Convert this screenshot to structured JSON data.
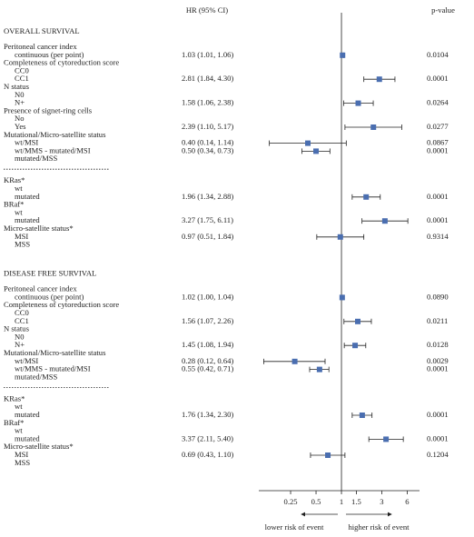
{
  "chart_data": {
    "type": "forest",
    "hr_header": "HR (95% CI)",
    "p_header": "p-value",
    "log_scale": true,
    "ref_line": 1,
    "xlim": [
      0.105,
      8.4
    ],
    "xticks": [
      0.25,
      0.5,
      1,
      1.5,
      3,
      6
    ],
    "marker_color": "#4a6eb0",
    "lower_label": "lower risk of event",
    "higher_label": "higher risk of event",
    "sections": [
      {
        "title": "OVERALL SURVIVAL",
        "blocks": [
          {
            "groups": [
              {
                "label": "Peritoneal cancer index",
                "rows": [
                  {
                    "label": "continuous (per point)",
                    "hr": 1.03,
                    "lo": 1.01,
                    "hi": 1.06,
                    "hr_label": "1.03 (1.01, 1.06)",
                    "p": "0.0104"
                  }
                ]
              },
              {
                "label": "Completeness of cytoreduction score",
                "rows": [
                  {
                    "label": "CC0"
                  },
                  {
                    "label": "CC1",
                    "hr": 2.81,
                    "lo": 1.84,
                    "hi": 4.3,
                    "hr_label": "2.81 (1.84, 4.30)",
                    "p": "0.0001"
                  }
                ]
              },
              {
                "label": "N status",
                "rows": [
                  {
                    "label": "N0"
                  },
                  {
                    "label": "N+",
                    "hr": 1.58,
                    "lo": 1.06,
                    "hi": 2.38,
                    "hr_label": "1.58 (1.06, 2.38)",
                    "p": "0.0264"
                  }
                ]
              },
              {
                "label": "Presence of signet-ring cells",
                "rows": [
                  {
                    "label": "No"
                  },
                  {
                    "label": "Yes",
                    "hr": 2.39,
                    "lo": 1.1,
                    "hi": 5.17,
                    "hr_label": "2.39 (1.10, 5.17)",
                    "p": "0.0277"
                  }
                ]
              },
              {
                "label": "Mutational/Micro-satellite status",
                "rows": [
                  {
                    "label": "wt/MSI",
                    "hr": 0.4,
                    "lo": 0.14,
                    "hi": 1.14,
                    "hr_label": "0.40 (0.14, 1.14)",
                    "p": "0.0867"
                  },
                  {
                    "label": "wt/MMS - mutated/MSI",
                    "hr": 0.5,
                    "lo": 0.34,
                    "hi": 0.73,
                    "hr_label": "0.50 (0.34, 0.73)",
                    "p": "0.0001"
                  },
                  {
                    "label": "mutated/MSS"
                  }
                ]
              }
            ]
          },
          {
            "groups": [
              {
                "label": "KRas*",
                "rows": [
                  {
                    "label": "wt"
                  },
                  {
                    "label": "mutated",
                    "hr": 1.96,
                    "lo": 1.34,
                    "hi": 2.88,
                    "hr_label": "1.96 (1.34, 2.88)",
                    "p": "0.0001"
                  }
                ]
              },
              {
                "label": "BRaf*",
                "rows": [
                  {
                    "label": "wt"
                  },
                  {
                    "label": "mutated",
                    "hr": 3.27,
                    "lo": 1.75,
                    "hi": 6.11,
                    "hr_label": "3.27 (1.75, 6.11)",
                    "p": "0.0001"
                  }
                ]
              },
              {
                "label": "Micro-satellite status*",
                "rows": [
                  {
                    "label": "MSI",
                    "hr": 0.97,
                    "lo": 0.51,
                    "hi": 1.84,
                    "hr_label": "0.97 (0.51, 1.84)",
                    "p": "0.9314"
                  },
                  {
                    "label": "MSS"
                  }
                ]
              }
            ]
          }
        ]
      },
      {
        "title": "DISEASE FREE SURVIVAL",
        "blocks": [
          {
            "groups": [
              {
                "label": "Peritoneal cancer index",
                "rows": [
                  {
                    "label": "continuous (per point)",
                    "hr": 1.02,
                    "lo": 1.0,
                    "hi": 1.04,
                    "hr_label": "1.02 (1.00, 1.04)",
                    "p": "0.0890"
                  }
                ]
              },
              {
                "label": "Completeness of cytoreduction score",
                "rows": [
                  {
                    "label": "CC0"
                  },
                  {
                    "label": "CC1",
                    "hr": 1.56,
                    "lo": 1.07,
                    "hi": 2.26,
                    "hr_label": "1.56 (1.07, 2.26)",
                    "p": "0.0211"
                  }
                ]
              },
              {
                "label": "N status",
                "rows": [
                  {
                    "label": "N0"
                  },
                  {
                    "label": "N+",
                    "hr": 1.45,
                    "lo": 1.08,
                    "hi": 1.94,
                    "hr_label": "1.45 (1.08, 1.94)",
                    "p": "0.0128"
                  }
                ]
              },
              {
                "label": "Mutational/Micro-satellite status",
                "rows": [
                  {
                    "label": "wt/MSI",
                    "hr": 0.28,
                    "lo": 0.12,
                    "hi": 0.64,
                    "hr_label": "0.28 (0.12, 0.64)",
                    "p": "0.0029"
                  },
                  {
                    "label": "wt/MMS - mutated/MSI",
                    "hr": 0.55,
                    "lo": 0.42,
                    "hi": 0.71,
                    "hr_label": "0.55 (0.42, 0.71)",
                    "p": "0.0001"
                  },
                  {
                    "label": "mutated/MSS"
                  }
                ]
              }
            ]
          },
          {
            "groups": [
              {
                "label": "KRas*",
                "rows": [
                  {
                    "label": "wt"
                  },
                  {
                    "label": "mutated",
                    "hr": 1.76,
                    "lo": 1.34,
                    "hi": 2.3,
                    "hr_label": "1.76 (1.34, 2.30)",
                    "p": "0.0001"
                  }
                ]
              },
              {
                "label": "BRaf*",
                "rows": [
                  {
                    "label": "wt"
                  },
                  {
                    "label": "mutated",
                    "hr": 3.37,
                    "lo": 2.11,
                    "hi": 5.4,
                    "hr_label": "3.37 (2.11, 5.40)",
                    "p": "0.0001"
                  }
                ]
              },
              {
                "label": "Micro-satellite status*",
                "rows": [
                  {
                    "label": "MSI",
                    "hr": 0.69,
                    "lo": 0.43,
                    "hi": 1.1,
                    "hr_label": "0.69 (0.43, 1.10)",
                    "p": "0.1204"
                  },
                  {
                    "label": "MSS"
                  }
                ]
              }
            ]
          }
        ]
      }
    ]
  }
}
